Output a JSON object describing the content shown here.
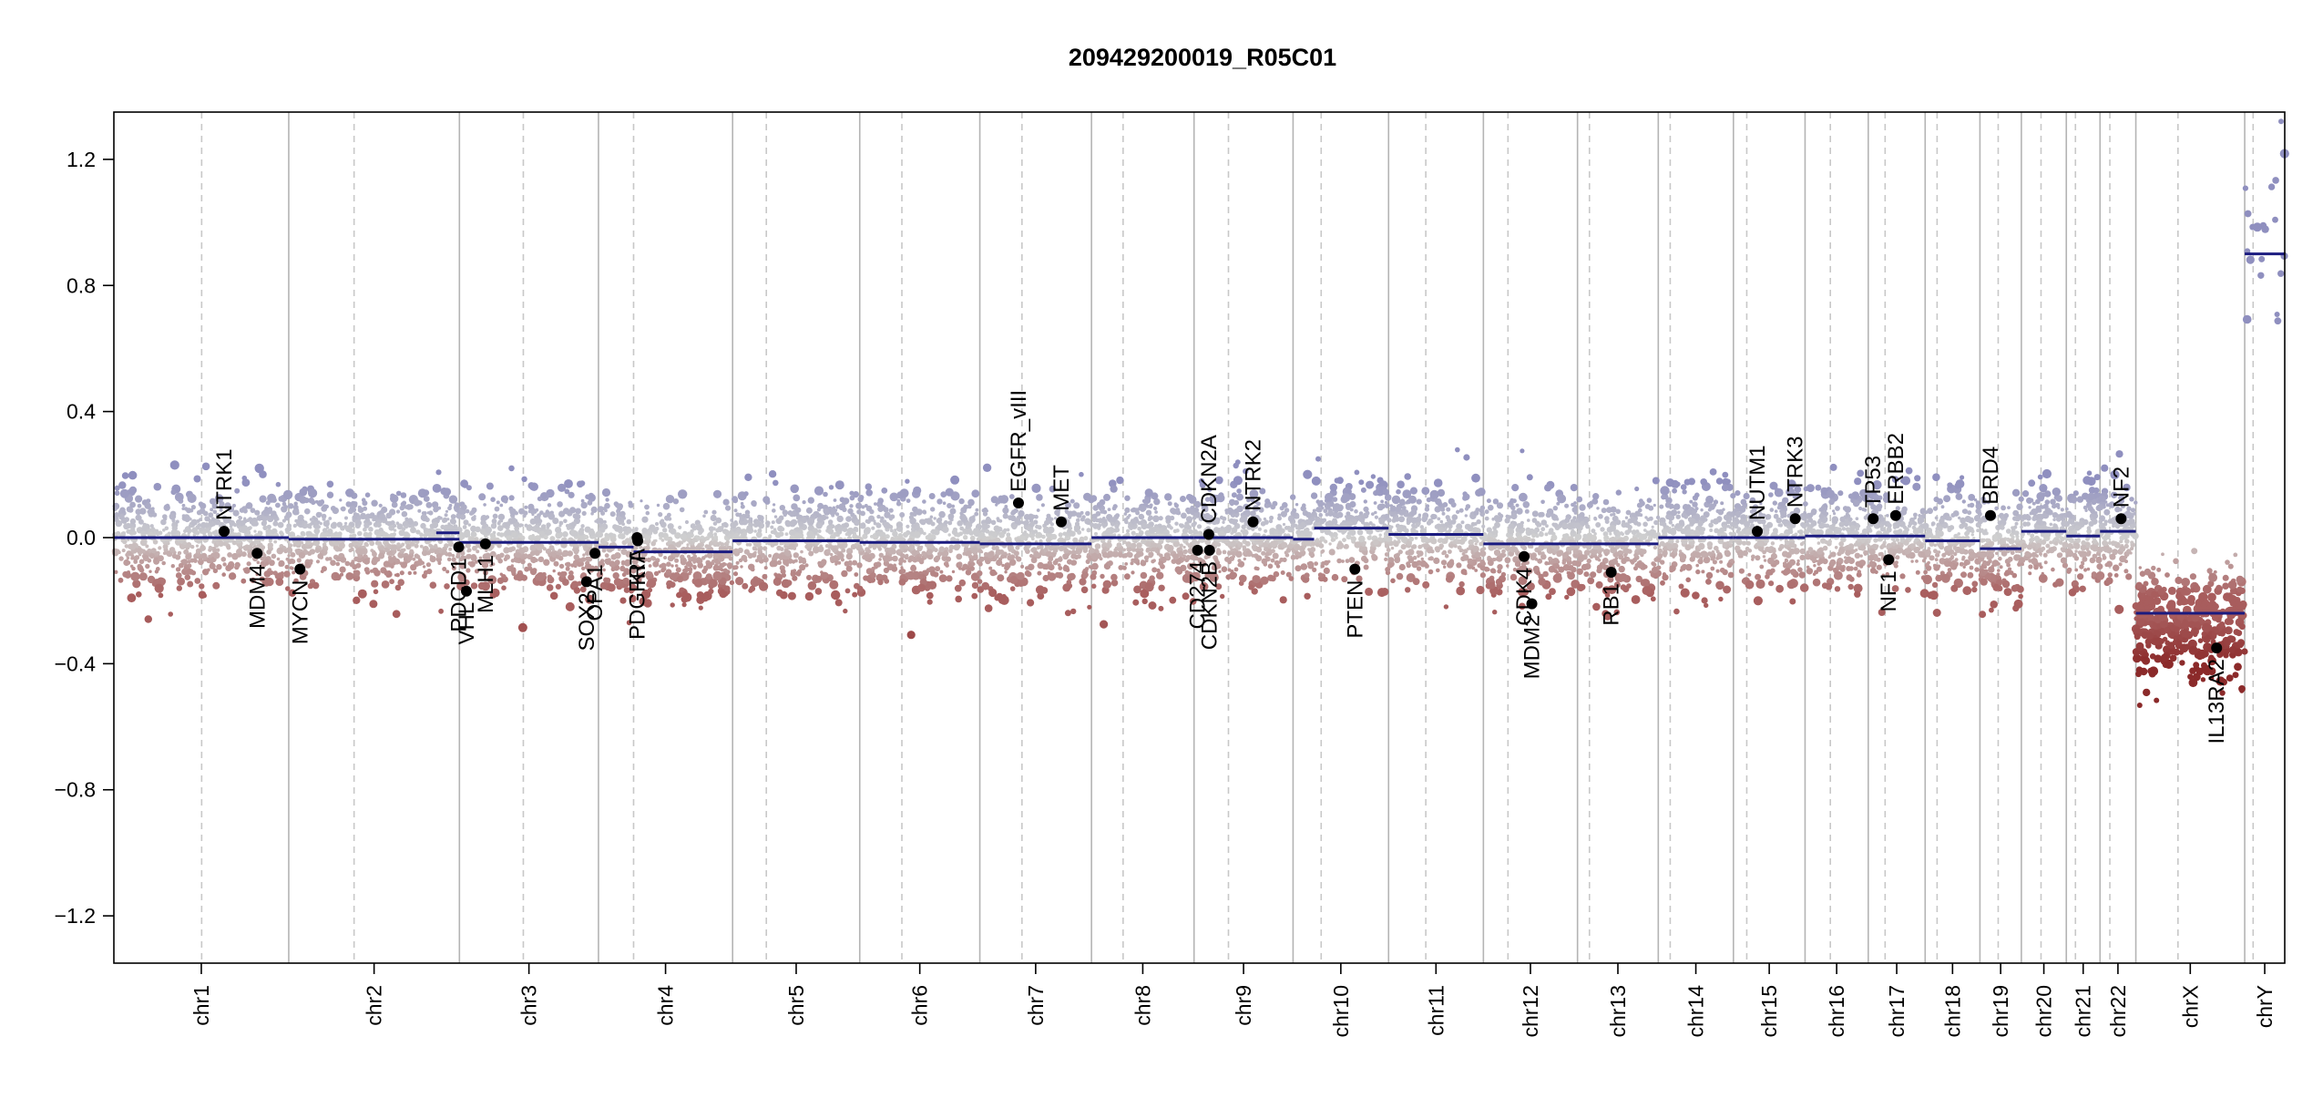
{
  "chart_data": {
    "type": "scatter",
    "title": "209429200019_R05C01",
    "xlabel": "",
    "ylabel": "",
    "ylim": [
      -1.35,
      1.35
    ],
    "y_ticks": [
      -1.2,
      -0.8,
      -0.4,
      0.0,
      0.4,
      0.8,
      1.2
    ],
    "y_tick_labels": [
      "−1.2",
      "−0.8",
      "−0.4",
      "0.0",
      "0.4",
      "0.8",
      "1.2"
    ],
    "grid": false,
    "colors": {
      "gain": "#8f8fbf",
      "neutral": "#cfcfcf",
      "loss": "#a85d5d",
      "deep_loss": "#8b2a2a",
      "segment": "#1b1b80",
      "marker": "#000000",
      "chrom_border": "#b4b4b4",
      "centromere": "#c8c8c8"
    },
    "chromosomes": [
      {
        "name": "chr1",
        "size": 249
      },
      {
        "name": "chr2",
        "size": 243
      },
      {
        "name": "chr3",
        "size": 198
      },
      {
        "name": "chr4",
        "size": 191
      },
      {
        "name": "chr5",
        "size": 181
      },
      {
        "name": "chr6",
        "size": 171
      },
      {
        "name": "chr7",
        "size": 159
      },
      {
        "name": "chr8",
        "size": 146
      },
      {
        "name": "chr9",
        "size": 141
      },
      {
        "name": "chr10",
        "size": 136
      },
      {
        "name": "chr11",
        "size": 135
      },
      {
        "name": "chr12",
        "size": 134
      },
      {
        "name": "chr13",
        "size": 115
      },
      {
        "name": "chr14",
        "size": 107
      },
      {
        "name": "chr15",
        "size": 102
      },
      {
        "name": "chr16",
        "size": 90
      },
      {
        "name": "chr17",
        "size": 81
      },
      {
        "name": "chr18",
        "size": 78
      },
      {
        "name": "chr19",
        "size": 59
      },
      {
        "name": "chr20",
        "size": 64
      },
      {
        "name": "chr21",
        "size": 48
      },
      {
        "name": "chr22",
        "size": 51
      },
      {
        "name": "chrX",
        "size": 155
      },
      {
        "name": "chrY",
        "size": 57
      }
    ],
    "centromeres": [
      {
        "chr": "chr1",
        "pos": 125
      },
      {
        "chr": "chr2",
        "pos": 93
      },
      {
        "chr": "chr3",
        "pos": 91
      },
      {
        "chr": "chr4",
        "pos": 50
      },
      {
        "chr": "chr5",
        "pos": 48
      },
      {
        "chr": "chr6",
        "pos": 60
      },
      {
        "chr": "chr7",
        "pos": 60
      },
      {
        "chr": "chr8",
        "pos": 45
      },
      {
        "chr": "chr9",
        "pos": 49
      },
      {
        "chr": "chr10",
        "pos": 40
      },
      {
        "chr": "chr11",
        "pos": 53
      },
      {
        "chr": "chr12",
        "pos": 35
      },
      {
        "chr": "chr13",
        "pos": 17
      },
      {
        "chr": "chr14",
        "pos": 17
      },
      {
        "chr": "chr15",
        "pos": 19
      },
      {
        "chr": "chr16",
        "pos": 36
      },
      {
        "chr": "chr17",
        "pos": 24
      },
      {
        "chr": "chr18",
        "pos": 17
      },
      {
        "chr": "chr19",
        "pos": 26
      },
      {
        "chr": "chr20",
        "pos": 28
      },
      {
        "chr": "chr21",
        "pos": 13
      },
      {
        "chr": "chr22",
        "pos": 14
      },
      {
        "chr": "chrX",
        "pos": 60
      },
      {
        "chr": "chrY",
        "pos": 12
      }
    ],
    "segments": [
      {
        "chr": "chr1",
        "start": 0,
        "end": 249,
        "value": 0.0
      },
      {
        "chr": "chr2",
        "start": 0,
        "end": 243,
        "value": -0.005
      },
      {
        "chr": "chr2",
        "start": 210,
        "end": 243,
        "value": 0.015
      },
      {
        "chr": "chr3",
        "start": 0,
        "end": 198,
        "value": -0.015
      },
      {
        "chr": "chr4",
        "start": 0,
        "end": 50,
        "value": -0.03
      },
      {
        "chr": "chr4",
        "start": 50,
        "end": 191,
        "value": -0.045
      },
      {
        "chr": "chr5",
        "start": 0,
        "end": 181,
        "value": -0.01
      },
      {
        "chr": "chr6",
        "start": 0,
        "end": 171,
        "value": -0.015
      },
      {
        "chr": "chr7",
        "start": 0,
        "end": 159,
        "value": -0.02
      },
      {
        "chr": "chr8",
        "start": 0,
        "end": 146,
        "value": 0.0
      },
      {
        "chr": "chr9",
        "start": 0,
        "end": 141,
        "value": 0.0
      },
      {
        "chr": "chr10",
        "start": 0,
        "end": 30,
        "value": -0.005
      },
      {
        "chr": "chr10",
        "start": 30,
        "end": 136,
        "value": 0.03
      },
      {
        "chr": "chr11",
        "start": 0,
        "end": 135,
        "value": 0.01
      },
      {
        "chr": "chr12",
        "start": 0,
        "end": 134,
        "value": -0.02
      },
      {
        "chr": "chr13",
        "start": 0,
        "end": 115,
        "value": -0.02
      },
      {
        "chr": "chr14",
        "start": 0,
        "end": 107,
        "value": 0.0
      },
      {
        "chr": "chr15",
        "start": 0,
        "end": 102,
        "value": 0.0
      },
      {
        "chr": "chr16",
        "start": 0,
        "end": 90,
        "value": 0.005
      },
      {
        "chr": "chr17",
        "start": 0,
        "end": 81,
        "value": 0.005
      },
      {
        "chr": "chr18",
        "start": 0,
        "end": 78,
        "value": -0.01
      },
      {
        "chr": "chr19",
        "start": 0,
        "end": 59,
        "value": -0.035
      },
      {
        "chr": "chr20",
        "start": 0,
        "end": 64,
        "value": 0.02
      },
      {
        "chr": "chr21",
        "start": 0,
        "end": 48,
        "value": 0.005
      },
      {
        "chr": "chr22",
        "start": 0,
        "end": 51,
        "value": 0.02
      },
      {
        "chr": "chrX",
        "start": 0,
        "end": 155,
        "value": -0.24
      },
      {
        "chr": "chrY",
        "start": 0,
        "end": 57,
        "value": 0.9
      }
    ],
    "genes": [
      {
        "name": "NTRK1",
        "chr": "chr1",
        "pos": 157,
        "value": 0.02,
        "label_side": "above"
      },
      {
        "name": "MDM4",
        "chr": "chr1",
        "pos": 204,
        "value": -0.05,
        "label_side": "below"
      },
      {
        "name": "MYCN",
        "chr": "chr2",
        "pos": 16,
        "value": -0.1,
        "label_side": "below"
      },
      {
        "name": "PDCD1",
        "chr": "chr2",
        "pos": 242,
        "value": -0.03,
        "label_side": "below"
      },
      {
        "name": "VHL",
        "chr": "chr3",
        "pos": 10,
        "value": -0.17,
        "label_side": "below"
      },
      {
        "name": "MLH1",
        "chr": "chr3",
        "pos": 37,
        "value": -0.02,
        "label_side": "below"
      },
      {
        "name": "SOX2",
        "chr": "chr3",
        "pos": 181,
        "value": -0.14,
        "label_side": "below"
      },
      {
        "name": "OPA1",
        "chr": "chr3",
        "pos": 193,
        "value": -0.05,
        "label_side": "below"
      },
      {
        "name": "PDGFRA",
        "chr": "chr4",
        "pos": 55,
        "value": 0.0,
        "label_side": "below"
      },
      {
        "name": "KIT",
        "chr": "chr4",
        "pos": 56,
        "value": -0.01,
        "label_side": "below"
      },
      {
        "name": "EGFR_vIII",
        "chr": "chr7",
        "pos": 55,
        "value": 0.11,
        "label_side": "above"
      },
      {
        "name": "MET",
        "chr": "chr7",
        "pos": 116,
        "value": 0.05,
        "label_side": "above"
      },
      {
        "name": "CD274",
        "chr": "chr9",
        "pos": 5,
        "value": -0.04,
        "label_side": "below"
      },
      {
        "name": "CDKN2B",
        "chr": "chr9",
        "pos": 22,
        "value": -0.04,
        "label_side": "below"
      },
      {
        "name": "CDKN2A",
        "chr": "chr9",
        "pos": 21,
        "value": 0.01,
        "label_side": "above"
      },
      {
        "name": "NTRK2",
        "chr": "chr9",
        "pos": 84,
        "value": 0.05,
        "label_side": "above"
      },
      {
        "name": "PTEN",
        "chr": "chr10",
        "pos": 88,
        "value": -0.1,
        "label_side": "below"
      },
      {
        "name": "CDK4",
        "chr": "chr12",
        "pos": 58,
        "value": -0.06,
        "label_side": "below"
      },
      {
        "name": "MDM2",
        "chr": "chr12",
        "pos": 69,
        "value": -0.21,
        "label_side": "below"
      },
      {
        "name": "RB1",
        "chr": "chr13",
        "pos": 48,
        "value": -0.11,
        "label_side": "below"
      },
      {
        "name": "NUTM1",
        "chr": "chr15",
        "pos": 34,
        "value": 0.02,
        "label_side": "above"
      },
      {
        "name": "NTRK3",
        "chr": "chr15",
        "pos": 88,
        "value": 0.06,
        "label_side": "above"
      },
      {
        "name": "TP53",
        "chr": "chr17",
        "pos": 7,
        "value": 0.06,
        "label_side": "above"
      },
      {
        "name": "NF1",
        "chr": "chr17",
        "pos": 29,
        "value": -0.07,
        "label_side": "below"
      },
      {
        "name": "ERBB2",
        "chr": "chr17",
        "pos": 39,
        "value": 0.07,
        "label_side": "above"
      },
      {
        "name": "BRD4",
        "chr": "chr19",
        "pos": 15,
        "value": 0.07,
        "label_side": "above"
      },
      {
        "name": "NF2",
        "chr": "chr22",
        "pos": 30,
        "value": 0.06,
        "label_side": "above"
      },
      {
        "name": "IL13RA2",
        "chr": "chrX",
        "pos": 115,
        "value": -0.35,
        "label_side": "below"
      }
    ],
    "probe_clouds": [
      {
        "chr": "chrX",
        "center": -0.27,
        "spread": 0.09
      },
      {
        "chr": "chrY",
        "center": 0.95,
        "spread": 0.15
      }
    ]
  }
}
